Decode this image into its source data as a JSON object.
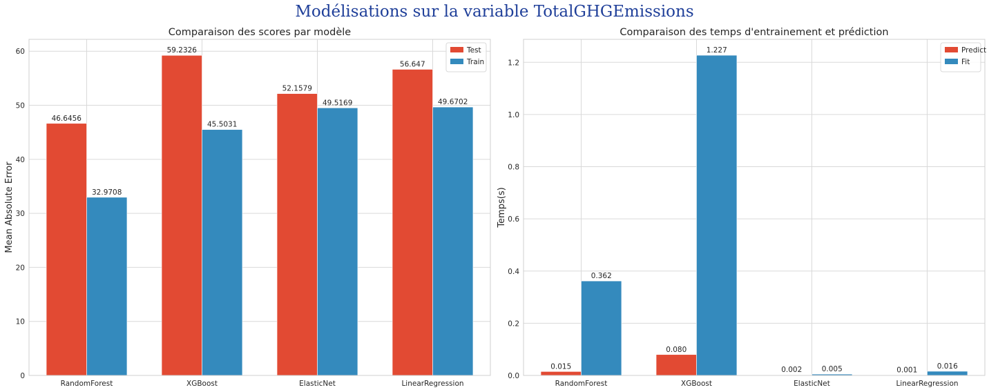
{
  "figure": {
    "suptitle": "Modélisations sur la variable TotalGHGEmissions",
    "suptitle_color": "#1f3f99"
  },
  "chart_data": [
    {
      "type": "bar",
      "title": "Comparaison des scores par modèle",
      "xlabel": "",
      "ylabel": "Mean Absolute Error",
      "categories": [
        "RandomForest",
        "XGBoost",
        "ElasticNet",
        "LinearRegression"
      ],
      "series": [
        {
          "name": "Test",
          "color": "#e24a33",
          "values": [
            46.6456,
            59.2326,
            52.1579,
            56.647
          ],
          "labels": [
            "46.6456",
            "59.2326",
            "52.1579",
            "56.647"
          ]
        },
        {
          "name": "Train",
          "color": "#348abd",
          "values": [
            32.9708,
            45.5031,
            49.5169,
            49.6702
          ],
          "labels": [
            "32.9708",
            "45.5031",
            "49.5169",
            "49.6702"
          ]
        }
      ],
      "ylim": [
        0,
        62.2
      ],
      "yticks": [
        0,
        10,
        20,
        30,
        40,
        50,
        60
      ],
      "ytick_labels": [
        "0",
        "10",
        "20",
        "30",
        "40",
        "50",
        "60"
      ],
      "grid": true,
      "legend": "top-right"
    },
    {
      "type": "bar",
      "title": "Comparaison des temps d'entrainement et prédiction",
      "xlabel": "",
      "ylabel": "Temps(s)",
      "categories": [
        "RandomForest",
        "XGBoost",
        "ElasticNet",
        "LinearRegression"
      ],
      "series": [
        {
          "name": "Predict",
          "color": "#e24a33",
          "values": [
            0.015,
            0.08,
            0.002,
            0.001
          ],
          "labels": [
            "0.015",
            "0.080",
            "0.002",
            "0.001"
          ]
        },
        {
          "name": "Fit",
          "color": "#348abd",
          "values": [
            0.362,
            1.227,
            0.005,
            0.016
          ],
          "labels": [
            "0.362",
            "1.227",
            "0.005",
            "0.016"
          ]
        }
      ],
      "ylim": [
        0,
        1.288
      ],
      "yticks": [
        0,
        0.2,
        0.4,
        0.6,
        0.8,
        1.0,
        1.2
      ],
      "ytick_labels": [
        "0.0",
        "0.2",
        "0.4",
        "0.6",
        "0.8",
        "1.0",
        "1.2"
      ],
      "grid": true,
      "legend": "top-right"
    }
  ]
}
